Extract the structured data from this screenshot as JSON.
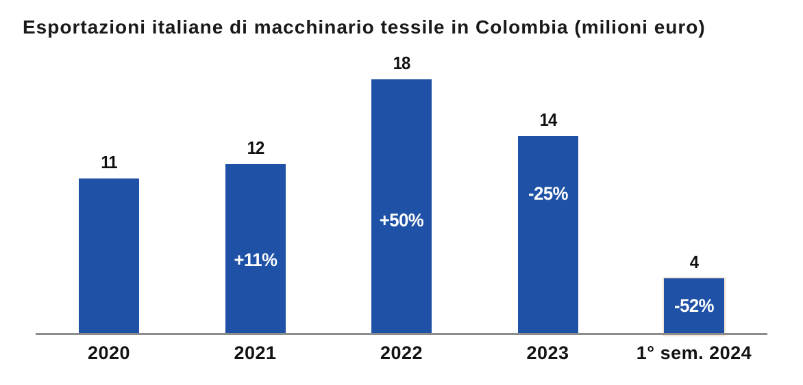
{
  "chart_data": {
    "type": "bar",
    "title": "Esportazioni italiane di macchinario tessile in Colombia (milioni euro)",
    "categories": [
      "2020",
      "2021",
      "2022",
      "2023",
      "1° sem. 2024"
    ],
    "values": [
      11,
      12,
      18,
      14,
      4
    ],
    "value_labels": [
      "11",
      "12",
      "18",
      "14",
      "4"
    ],
    "pct_labels": [
      "",
      "+11%",
      "+50%",
      "-25%",
      "-52%"
    ],
    "series_name": "Esportazioni (milioni euro)",
    "ylabel": "milioni euro",
    "xlabel": "",
    "ylim": [
      0,
      20
    ],
    "grid": false,
    "legend": false,
    "colors": {
      "bar": "#1f52a6",
      "pct_label": "#ffffff",
      "value_label": "#111111",
      "axis_line": "#8c8c8c",
      "title": "#1a1a1a",
      "last_bar_outline": "#f2e7d9"
    }
  }
}
